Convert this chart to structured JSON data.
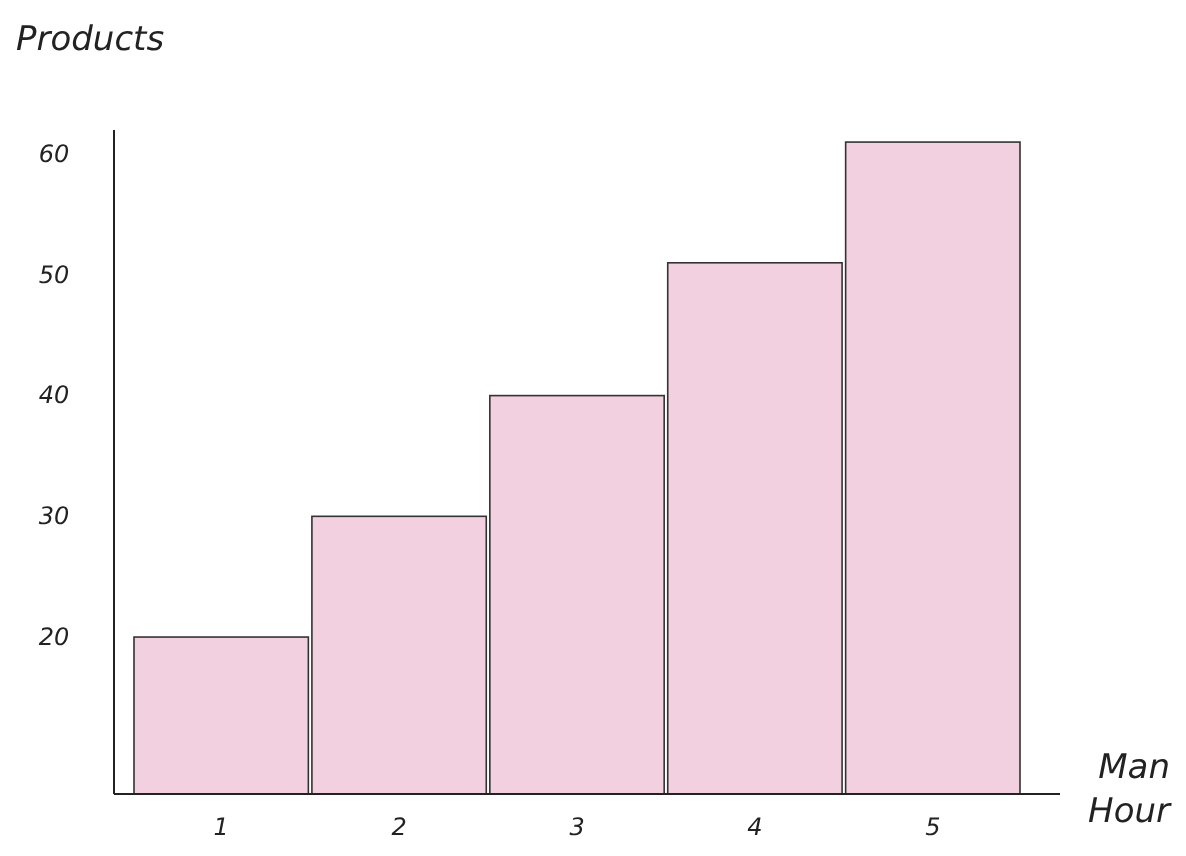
{
  "chart_data": {
    "type": "bar",
    "xlabel": "Man Hour",
    "ylabel": "Products",
    "categories": [
      "1",
      "2",
      "3",
      "4",
      "5"
    ],
    "values": [
      20,
      30,
      40,
      51,
      61
    ],
    "color": "#f2d0e0",
    "ylim": [
      7,
      62
    ],
    "yticks": [
      20,
      30,
      40,
      50,
      60
    ],
    "grid": false
  }
}
